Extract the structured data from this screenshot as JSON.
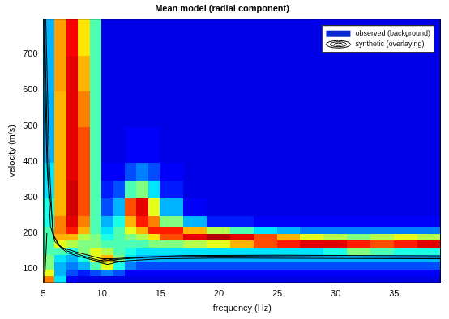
{
  "chart_data": {
    "type": "heatmap",
    "title": "Mean model (radial component)",
    "x_label": "frequency (Hz)",
    "y_label": "velocity (m/s)",
    "xlim": [
      5,
      39
    ],
    "xticks": [
      5,
      10,
      15,
      20,
      25,
      30,
      35
    ],
    "ylim": [
      60,
      800
    ],
    "yticks": [
      100,
      200,
      300,
      400,
      500,
      600,
      700
    ],
    "grid": false,
    "legend": "upper right",
    "heatmap": {
      "name": "observed (background)",
      "color": "#0a28d2",
      "zlim": [
        0,
        1
      ],
      "x_edges": [
        5,
        6,
        7,
        8,
        9,
        10,
        11,
        12,
        13,
        14,
        15,
        17,
        19,
        21,
        23,
        25,
        27,
        29,
        31,
        33,
        35,
        37,
        39
      ],
      "y_edges": [
        60,
        80,
        100,
        120,
        140,
        160,
        180,
        200,
        220,
        250,
        300,
        350,
        400,
        500,
        600,
        700,
        800
      ],
      "cells": [
        [
          0.75,
          0.35,
          0.12,
          0.1,
          0.1,
          0.1,
          0.1,
          0.1,
          0.1,
          0.1,
          0.1,
          0.1,
          0.1,
          0.1,
          0.1,
          0.1,
          0.1,
          0.1,
          0.1,
          0.1,
          0.1,
          0.1
        ],
        [
          0.6,
          0.3,
          0.2,
          0.15,
          0.2,
          0.25,
          0.2,
          0.12,
          0.12,
          0.12,
          0.12,
          0.12,
          0.12,
          0.12,
          0.12,
          0.12,
          0.12,
          0.12,
          0.12,
          0.12,
          0.12,
          0.12
        ],
        [
          0.5,
          0.3,
          0.25,
          0.3,
          0.45,
          0.6,
          0.4,
          0.25,
          0.2,
          0.2,
          0.2,
          0.2,
          0.2,
          0.2,
          0.2,
          0.2,
          0.2,
          0.2,
          0.2,
          0.2,
          0.2,
          0.2
        ],
        [
          0.5,
          0.35,
          0.3,
          0.4,
          0.6,
          0.7,
          0.5,
          0.35,
          0.3,
          0.3,
          0.3,
          0.3,
          0.3,
          0.3,
          0.3,
          0.3,
          0.3,
          0.3,
          0.3,
          0.3,
          0.3,
          0.3
        ],
        [
          0.45,
          0.45,
          0.4,
          0.5,
          0.6,
          0.55,
          0.45,
          0.4,
          0.35,
          0.35,
          0.35,
          0.35,
          0.35,
          0.35,
          0.35,
          0.35,
          0.35,
          0.4,
          0.5,
          0.45,
          0.4,
          0.4
        ],
        [
          0.45,
          0.6,
          0.55,
          0.5,
          0.5,
          0.45,
          0.45,
          0.45,
          0.45,
          0.5,
          0.5,
          0.55,
          0.6,
          0.7,
          0.8,
          0.85,
          0.9,
          0.9,
          0.85,
          0.8,
          0.85,
          0.9
        ],
        [
          0.45,
          0.7,
          0.7,
          0.55,
          0.5,
          0.4,
          0.45,
          0.5,
          0.55,
          0.65,
          0.8,
          0.9,
          0.95,
          0.9,
          0.8,
          0.7,
          0.6,
          0.55,
          0.5,
          0.55,
          0.6,
          0.55
        ],
        [
          0.45,
          0.75,
          0.85,
          0.7,
          0.45,
          0.35,
          0.45,
          0.6,
          0.7,
          0.85,
          0.85,
          0.7,
          0.55,
          0.45,
          0.35,
          0.3,
          0.25,
          0.25,
          0.25,
          0.25,
          0.25,
          0.25
        ],
        [
          0.4,
          0.75,
          0.9,
          0.75,
          0.45,
          0.3,
          0.4,
          0.7,
          0.85,
          0.75,
          0.5,
          0.3,
          0.15,
          0.15,
          0.12,
          0.12,
          0.12,
          0.12,
          0.12,
          0.12,
          0.12,
          0.12
        ],
        [
          0.4,
          0.7,
          0.92,
          0.8,
          0.45,
          0.2,
          0.3,
          0.8,
          0.9,
          0.6,
          0.3,
          0.12,
          0.1,
          0.1,
          0.1,
          0.1,
          0.1,
          0.1,
          0.1,
          0.1,
          0.1,
          0.1
        ],
        [
          0.35,
          0.7,
          0.92,
          0.8,
          0.45,
          0.15,
          0.2,
          0.45,
          0.5,
          0.35,
          0.15,
          0.1,
          0.1,
          0.1,
          0.1,
          0.1,
          0.1,
          0.1,
          0.1,
          0.1,
          0.1,
          0.1
        ],
        [
          0.35,
          0.7,
          0.9,
          0.8,
          0.45,
          0.12,
          0.12,
          0.2,
          0.25,
          0.2,
          0.12,
          0.1,
          0.1,
          0.1,
          0.1,
          0.1,
          0.1,
          0.1,
          0.1,
          0.1,
          0.1,
          0.1
        ],
        [
          0.3,
          0.7,
          0.9,
          0.8,
          0.45,
          0.1,
          0.1,
          0.12,
          0.12,
          0.12,
          0.1,
          0.1,
          0.1,
          0.1,
          0.1,
          0.1,
          0.1,
          0.1,
          0.1,
          0.1,
          0.1,
          0.1
        ],
        [
          0.3,
          0.7,
          0.9,
          0.75,
          0.45,
          0.1,
          0.1,
          0.1,
          0.1,
          0.1,
          0.1,
          0.1,
          0.1,
          0.1,
          0.1,
          0.1,
          0.1,
          0.1,
          0.1,
          0.1,
          0.1,
          0.1
        ],
        [
          0.3,
          0.72,
          0.9,
          0.7,
          0.45,
          0.1,
          0.1,
          0.1,
          0.1,
          0.1,
          0.1,
          0.1,
          0.1,
          0.1,
          0.1,
          0.1,
          0.1,
          0.1,
          0.1,
          0.1,
          0.1,
          0.1
        ],
        [
          0.3,
          0.72,
          0.88,
          0.65,
          0.45,
          0.1,
          0.1,
          0.1,
          0.1,
          0.1,
          0.1,
          0.1,
          0.1,
          0.1,
          0.1,
          0.1,
          0.1,
          0.1,
          0.1,
          0.1,
          0.1,
          0.1
        ]
      ]
    },
    "series": [
      {
        "name": "synthetic (overlaying)",
        "type": "line",
        "color": "#000000",
        "line_style": "solid",
        "x": [
          5,
          5.3,
          5.6,
          6,
          7,
          8,
          9,
          10,
          11,
          12,
          14,
          17,
          20,
          25,
          30,
          35,
          39,
          null,
          5.2,
          5.5,
          5.8,
          6.3,
          7,
          8,
          10,
          12,
          15,
          20,
          30,
          39,
          null,
          5.1,
          5.4,
          5.9,
          6.5,
          8,
          10,
          11,
          13,
          17,
          25,
          39,
          null,
          9.5,
          10.5,
          11.5,
          10.5,
          9.5,
          null,
          5.1,
          5.2,
          5.3
        ],
        "values": [
          800,
          400,
          220,
          175,
          150,
          140,
          130,
          122,
          125,
          128,
          132,
          134,
          135,
          134,
          133,
          132,
          132,
          null,
          800,
          400,
          200,
          165,
          145,
          135,
          118,
          122,
          128,
          130,
          129,
          128,
          null,
          800,
          350,
          190,
          160,
          145,
          128,
          128,
          132,
          137,
          138,
          136,
          null,
          120,
          112,
          120,
          128,
          120,
          null,
          65,
          130,
          200
        ]
      }
    ]
  }
}
